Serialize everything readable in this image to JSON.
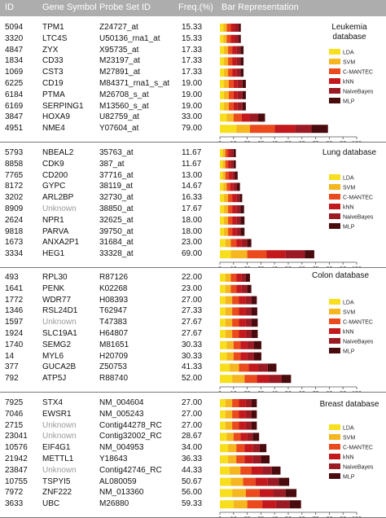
{
  "header": {
    "id": "ID",
    "gene": "Gene Symbol",
    "probe": "Probe Set ID",
    "freq": "Freq.(%)",
    "bar": "Bar Representation"
  },
  "legend": {
    "labels": [
      "LDA",
      "SVM",
      "C-MANTEC",
      "kNN",
      "NaiveBayes",
      "MLP"
    ],
    "colors": [
      "#f7df1e",
      "#f6b61f",
      "#ea4a1c",
      "#c3191d",
      "#9b1b25",
      "#4a0b0e"
    ]
  },
  "chart_data": [
    {
      "type": "bar",
      "title": "Leukemia database",
      "xlim": [
        0,
        100
      ],
      "xticks": [
        0,
        10,
        20,
        30,
        40,
        50,
        60,
        70,
        80,
        90,
        100
      ],
      "rows": [
        {
          "id": "5094",
          "gene": "TPM1",
          "probe": "Z24727_at",
          "freq": "15.33",
          "values": [
            2.5,
            2.5,
            3,
            3,
            3,
            1.3
          ]
        },
        {
          "id": "3320",
          "gene": "LTC4S",
          "probe": "U50136_rna1_at",
          "freq": "15.33",
          "values": [
            2.5,
            2.5,
            3,
            3,
            3,
            1.3
          ]
        },
        {
          "id": "4847",
          "gene": "ZYX",
          "probe": "X95735_at",
          "freq": "17.33",
          "values": [
            3,
            3,
            3,
            3,
            3,
            2.3
          ]
        },
        {
          "id": "1834",
          "gene": "CD33",
          "probe": "M23197_at",
          "freq": "17.33",
          "values": [
            3,
            3,
            3,
            3,
            3,
            2.3
          ]
        },
        {
          "id": "1069",
          "gene": "CST3",
          "probe": "M27891_at",
          "freq": "17.33",
          "values": [
            3,
            3,
            3,
            3,
            3,
            2.3
          ]
        },
        {
          "id": "6225",
          "gene": "CD19",
          "probe": "M84371_rna1_s_at",
          "freq": "19.00",
          "values": [
            3,
            3.5,
            3.5,
            3,
            3.5,
            2.5
          ]
        },
        {
          "id": "6184",
          "gene": "PTMA",
          "probe": "M26708_s_at",
          "freq": "19.00",
          "values": [
            3,
            3.5,
            3.5,
            3,
            3.5,
            2.5
          ]
        },
        {
          "id": "6169",
          "gene": "SERPING1",
          "probe": "M13560_s_at",
          "freq": "19.00",
          "values": [
            3,
            3.5,
            3.5,
            3,
            3.5,
            2.5
          ]
        },
        {
          "id": "3847",
          "gene": "HOXA9",
          "probe": "U82759_at",
          "freq": "33.00",
          "values": [
            5,
            5,
            6,
            6,
            6,
            5
          ]
        },
        {
          "id": "4951",
          "gene": "NME4",
          "probe": "Y07604_at",
          "freq": "79.00",
          "values": [
            12,
            10,
            18,
            15,
            12,
            12
          ]
        }
      ]
    },
    {
      "type": "bar",
      "title": "Lung database",
      "xlim": [
        0,
        100
      ],
      "xticks": [
        0,
        10,
        20,
        30,
        40,
        50,
        60,
        70,
        80,
        90,
        100
      ],
      "rows": [
        {
          "id": "5793",
          "gene": "NBEAL2",
          "probe": "35763_at",
          "freq": "11.67",
          "values": [
            2,
            2,
            2,
            2,
            2,
            1.67
          ]
        },
        {
          "id": "8858",
          "gene": "CDK9",
          "probe": "387_at",
          "freq": "11.67",
          "values": [
            2,
            2,
            2,
            2,
            2,
            1.67
          ]
        },
        {
          "id": "7765",
          "gene": "CD200",
          "probe": "37716_at",
          "freq": "13.00",
          "values": [
            2,
            2,
            2.5,
            2.5,
            2,
            2
          ]
        },
        {
          "id": "8172",
          "gene": "GYPC",
          "probe": "38119_at",
          "freq": "14.67",
          "values": [
            2.5,
            2.5,
            2.5,
            2.5,
            2.5,
            2.17
          ]
        },
        {
          "id": "3202",
          "gene": "ARL2BP",
          "probe": "32730_at",
          "freq": "16.33",
          "values": [
            3,
            3,
            3,
            3,
            2.5,
            1.83
          ]
        },
        {
          "id": "8909",
          "gene": "Unknown",
          "probe": "38850_at",
          "freq": "17.67",
          "values": [
            3,
            3,
            3,
            3,
            3,
            2.67
          ],
          "unknown": true
        },
        {
          "id": "2624",
          "gene": "NPR1",
          "probe": "32625_at",
          "freq": "18.00",
          "values": [
            3,
            3,
            3,
            3,
            3,
            3
          ]
        },
        {
          "id": "9818",
          "gene": "PARVA",
          "probe": "39750_at",
          "freq": "18.00",
          "values": [
            3,
            3,
            3,
            3,
            3,
            3
          ]
        },
        {
          "id": "1673",
          "gene": "ANXA2P1",
          "probe": "31684_at",
          "freq": "23.00",
          "values": [
            4,
            4,
            4,
            4,
            4,
            3
          ]
        },
        {
          "id": "3334",
          "gene": "HEG1",
          "probe": "33328_at",
          "freq": "69.00",
          "values": [
            8,
            12,
            14,
            14,
            14,
            7
          ]
        }
      ]
    },
    {
      "type": "bar",
      "title": "Colon database",
      "xlim": [
        0,
        100
      ],
      "xticks": [
        0,
        10,
        20,
        30,
        40,
        50,
        60,
        70,
        80,
        90,
        100
      ],
      "rows": [
        {
          "id": "493",
          "gene": "RPL30",
          "probe": "R87126",
          "freq": "22.00",
          "values": [
            4,
            4,
            4,
            4,
            3,
            3
          ]
        },
        {
          "id": "1641",
          "gene": "PENK",
          "probe": "K02268",
          "freq": "23.00",
          "values": [
            4,
            4,
            4,
            4,
            4,
            3
          ]
        },
        {
          "id": "1772",
          "gene": "WDR77",
          "probe": "H08393",
          "freq": "27.00",
          "values": [
            4,
            5,
            5,
            5,
            4,
            4
          ]
        },
        {
          "id": "1346",
          "gene": "RSL24D1",
          "probe": "T62947",
          "freq": "27.33",
          "values": [
            4,
            5,
            5,
            5,
            4,
            4.33
          ]
        },
        {
          "id": "1597",
          "gene": "Unknown",
          "probe": "T47383",
          "freq": "27.67",
          "values": [
            4,
            5,
            5,
            5,
            4,
            4.67
          ],
          "unknown": true
        },
        {
          "id": "1924",
          "gene": "SLC19A1",
          "probe": "H64807",
          "freq": "27.67",
          "values": [
            4,
            5,
            5,
            5,
            4,
            4.67
          ]
        },
        {
          "id": "1740",
          "gene": "SEMG2",
          "probe": "M81651",
          "freq": "30.33",
          "values": [
            5,
            5,
            5,
            5,
            5,
            5.33
          ]
        },
        {
          "id": "14",
          "gene": "MYL6",
          "probe": "H20709",
          "freq": "30.33",
          "values": [
            5,
            5,
            5,
            5,
            5,
            5.33
          ]
        },
        {
          "id": "377",
          "gene": "GUCA2B",
          "probe": "Z50753",
          "freq": "41.33",
          "values": [
            7,
            7,
            7,
            7,
            7,
            6.33
          ]
        },
        {
          "id": "792",
          "gene": "ATP5J",
          "probe": "R88740",
          "freq": "52.00",
          "values": [
            9,
            9,
            9,
            9,
            9,
            7
          ]
        }
      ]
    },
    {
      "type": "bar",
      "title": "Breast database",
      "xlim": [
        0,
        100
      ],
      "xticks": [
        0,
        10,
        20,
        30,
        40,
        50,
        60,
        70,
        80,
        90,
        100
      ],
      "rows": [
        {
          "id": "7925",
          "gene": "STX4",
          "probe": "NM_004604",
          "freq": "27.00",
          "values": [
            4,
            5,
            5,
            5,
            4,
            4
          ]
        },
        {
          "id": "7046",
          "gene": "EWSR1",
          "probe": "NM_005243",
          "freq": "27.00",
          "values": [
            4,
            5,
            5,
            5,
            4,
            4
          ]
        },
        {
          "id": "2715",
          "gene": "Unknown",
          "probe": "Contig44278_RC",
          "freq": "27.00",
          "values": [
            4,
            5,
            5,
            5,
            4,
            4
          ],
          "unknown": true
        },
        {
          "id": "23041",
          "gene": "Unknown",
          "probe": "Contig32002_RC",
          "freq": "28.67",
          "values": [
            5,
            5,
            5,
            5,
            4,
            4.67
          ],
          "unknown": true
        },
        {
          "id": "10576",
          "gene": "EIF4G1",
          "probe": "NM_004953",
          "freq": "34.00",
          "values": [
            6,
            6,
            6,
            6,
            5,
            5
          ]
        },
        {
          "id": "21942",
          "gene": "METTL1",
          "probe": "Y18643",
          "freq": "36.33",
          "values": [
            6,
            6,
            6,
            6,
            6,
            6.33
          ]
        },
        {
          "id": "23847",
          "gene": "Unknown",
          "probe": "Contig42746_RC",
          "freq": "44.33",
          "values": [
            7,
            8,
            8,
            8,
            7,
            6.33
          ],
          "unknown": true
        },
        {
          "id": "10755",
          "gene": "TSPYI5",
          "probe": "AL080059",
          "freq": "50.67",
          "values": [
            8,
            9,
            9,
            9,
            8,
            7.67
          ]
        },
        {
          "id": "7972",
          "gene": "ZNF222",
          "probe": "NM_013360",
          "freq": "56.00",
          "values": [
            9,
            10,
            10,
            10,
            9,
            8
          ]
        },
        {
          "id": "3633",
          "gene": "UBC",
          "probe": "M26880",
          "freq": "59.33",
          "values": [
            10,
            10,
            11,
            10,
            10,
            8.33
          ]
        }
      ]
    }
  ]
}
